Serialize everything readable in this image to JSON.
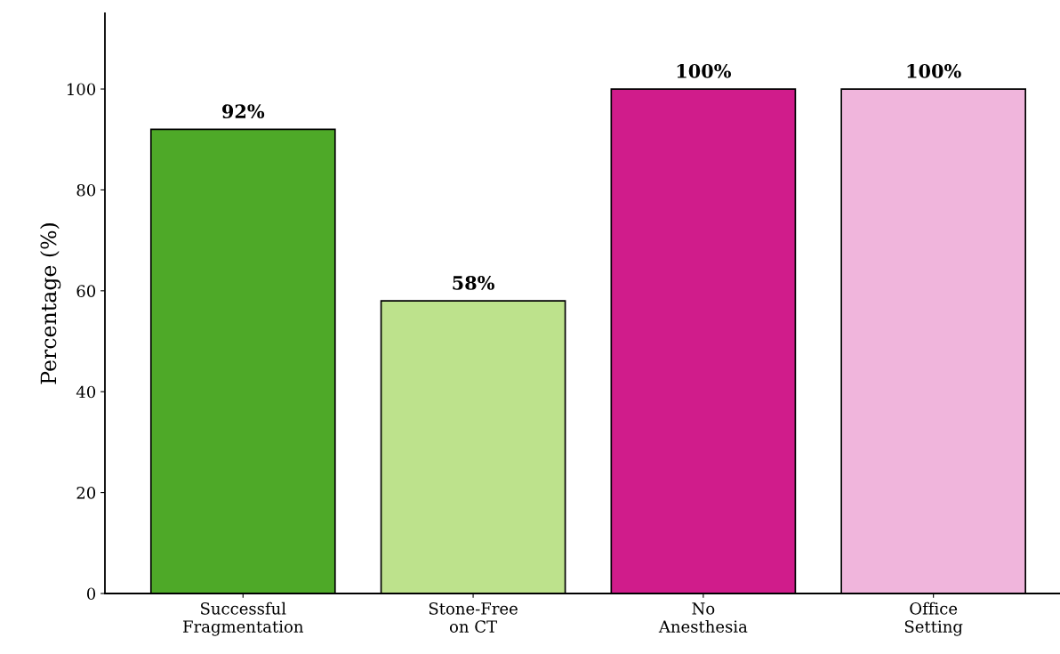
{
  "chart_data": {
    "type": "bar",
    "ylabel": "Percentage (%)",
    "categories": [
      "Successful\nFragmentation",
      "Stone-Free\non CT",
      "No\nAnesthesia",
      "Office\nSetting"
    ],
    "values": [
      92,
      58,
      100,
      100
    ],
    "colors": [
      "#4ea928",
      "#bde28c",
      "#d01c8b",
      "#f0b5dc"
    ],
    "value_labels": [
      "92%",
      "58%",
      "100%",
      "100%"
    ],
    "ylim": [
      0,
      115
    ],
    "yticks": [
      0,
      20,
      40,
      60,
      80,
      100
    ],
    "grid": false
  }
}
